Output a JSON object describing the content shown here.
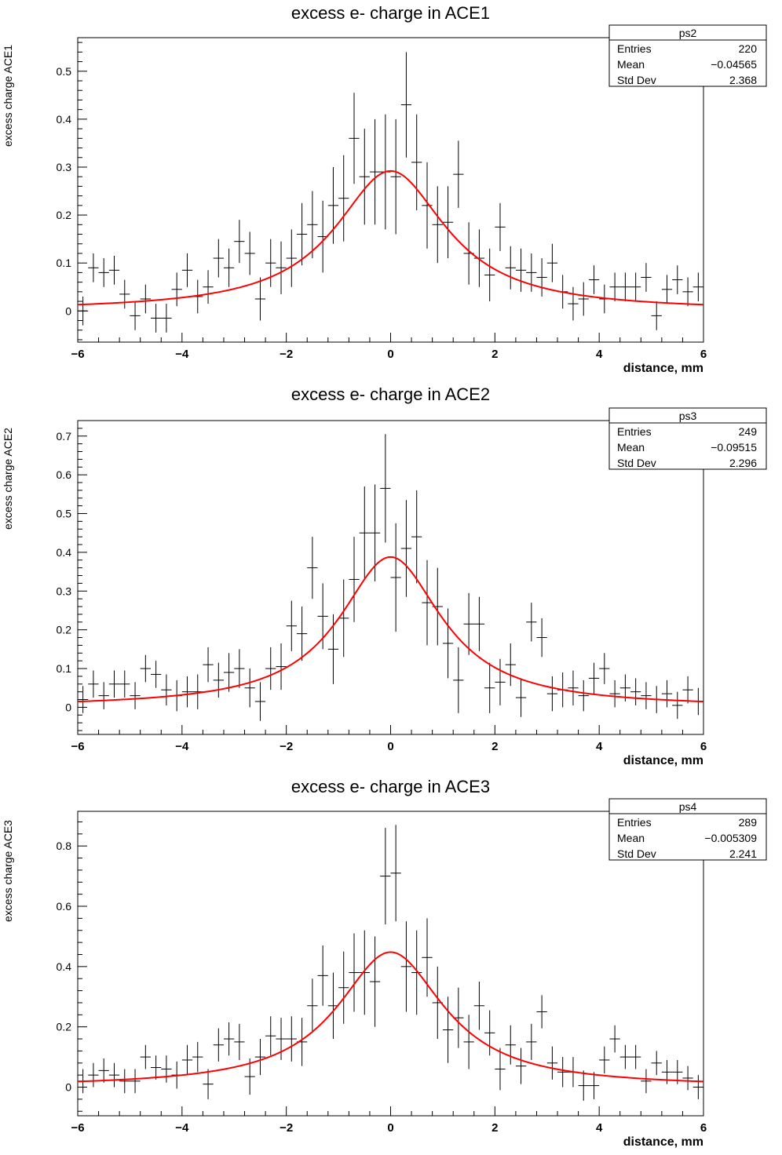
{
  "panels": [
    {
      "chart_data": {
        "type": "scatter",
        "title": "excess e- charge in ACE1",
        "xlabel": "distance, mm",
        "ylabel": "excess charge ACE1",
        "xlim": [
          -6,
          6
        ],
        "ylim": [
          -0.065,
          0.57
        ],
        "xticks": [
          -6,
          -4,
          -2,
          0,
          2,
          4,
          6
        ],
        "xtick_labels": [
          "−6",
          "−4",
          "−2",
          "0",
          "2",
          "4",
          "6"
        ],
        "yticks": [
          0,
          0.1,
          0.2,
          0.3,
          0.4,
          0.5
        ],
        "ytick_labels": [
          "0",
          "0.1",
          "0.2",
          "0.3",
          "0.4",
          "0.5"
        ],
        "grid": false,
        "stats_box": {
          "name": "ps2",
          "rows": [
            [
              "Entries",
              "220"
            ],
            [
              "Mean",
              "−0.04565"
            ],
            [
              "Std Dev",
              "2.368"
            ]
          ]
        },
        "fit": {
          "amp": 0.292,
          "gamma": 1.3,
          "color": "#ff0000"
        },
        "x": [
          -5.9,
          -5.7,
          -5.5,
          -5.3,
          -5.1,
          -4.9,
          -4.7,
          -4.5,
          -4.3,
          -4.1,
          -3.9,
          -3.7,
          -3.5,
          -3.3,
          -3.1,
          -2.9,
          -2.7,
          -2.5,
          -2.3,
          -2.1,
          -1.9,
          -1.7,
          -1.5,
          -1.3,
          -1.1,
          -0.9,
          -0.7,
          -0.5,
          -0.3,
          -0.1,
          0.1,
          0.3,
          0.5,
          0.7,
          0.9,
          1.1,
          1.3,
          1.5,
          1.7,
          1.9,
          2.1,
          2.3,
          2.5,
          2.7,
          2.9,
          3.1,
          3.3,
          3.5,
          3.7,
          3.9,
          4.1,
          4.3,
          4.5,
          4.7,
          4.9,
          5.1,
          5.3,
          5.5,
          5.7,
          5.9
        ],
        "y": [
          0.0,
          0.09,
          0.08,
          0.085,
          0.035,
          -0.01,
          0.025,
          -0.015,
          -0.015,
          0.045,
          0.085,
          0.03,
          0.05,
          0.11,
          0.09,
          0.145,
          0.12,
          0.025,
          0.1,
          0.09,
          0.11,
          0.16,
          0.18,
          0.155,
          0.22,
          0.235,
          0.36,
          0.28,
          0.29,
          0.29,
          0.28,
          0.43,
          0.31,
          0.22,
          0.18,
          0.185,
          0.285,
          0.12,
          0.11,
          0.075,
          0.175,
          0.09,
          0.085,
          0.08,
          0.07,
          0.1,
          0.04,
          0.015,
          0.025,
          0.065,
          0.025,
          0.05,
          0.05,
          0.05,
          0.07,
          -0.01,
          0.045,
          0.065,
          0.04,
          0.05
        ],
        "err": [
          0.03,
          0.03,
          0.03,
          0.03,
          0.03,
          0.03,
          0.03,
          0.03,
          0.03,
          0.035,
          0.035,
          0.035,
          0.035,
          0.04,
          0.04,
          0.045,
          0.045,
          0.045,
          0.05,
          0.055,
          0.06,
          0.065,
          0.07,
          0.075,
          0.08,
          0.09,
          0.095,
          0.1,
          0.11,
          0.12,
          0.12,
          0.11,
          0.1,
          0.09,
          0.08,
          0.075,
          0.07,
          0.065,
          0.06,
          0.055,
          0.05,
          0.045,
          0.045,
          0.04,
          0.04,
          0.04,
          0.035,
          0.035,
          0.035,
          0.03,
          0.03,
          0.03,
          0.03,
          0.03,
          0.03,
          0.03,
          0.03,
          0.03,
          0.03,
          0.03
        ]
      }
    },
    {
      "chart_data": {
        "type": "scatter",
        "title": "excess e- charge in ACE2",
        "xlabel": "distance, mm",
        "ylabel": "excess charge ACE2",
        "xlim": [
          -6,
          6
        ],
        "ylim": [
          -0.07,
          0.74
        ],
        "xticks": [
          -6,
          -4,
          -2,
          0,
          2,
          4,
          6
        ],
        "xtick_labels": [
          "−6",
          "−4",
          "−2",
          "0",
          "2",
          "4",
          "6"
        ],
        "yticks": [
          0,
          0.1,
          0.2,
          0.3,
          0.4,
          0.5,
          0.6,
          0.7
        ],
        "ytick_labels": [
          "0",
          "0.1",
          "0.2",
          "0.3",
          "0.4",
          "0.5",
          "0.6",
          "0.7"
        ],
        "grid": false,
        "stats_box": {
          "name": "ps3",
          "rows": [
            [
              "Entries",
              "249"
            ],
            [
              "Mean",
              "−0.09515"
            ],
            [
              "Std Dev",
              "2.296"
            ]
          ]
        },
        "fit": {
          "amp": 0.388,
          "gamma": 1.2,
          "color": "#ff0000"
        },
        "x": [
          -5.9,
          -5.7,
          -5.5,
          -5.3,
          -5.1,
          -4.9,
          -4.7,
          -4.5,
          -4.3,
          -4.1,
          -3.9,
          -3.7,
          -3.5,
          -3.3,
          -3.1,
          -2.9,
          -2.7,
          -2.5,
          -2.3,
          -2.1,
          -1.9,
          -1.7,
          -1.5,
          -1.3,
          -1.1,
          -0.9,
          -0.7,
          -0.5,
          -0.3,
          -0.1,
          0.1,
          0.3,
          0.5,
          0.7,
          0.9,
          1.1,
          1.3,
          1.5,
          1.7,
          1.9,
          2.1,
          2.3,
          2.5,
          2.7,
          2.9,
          3.1,
          3.3,
          3.5,
          3.7,
          3.9,
          4.1,
          4.3,
          4.5,
          4.7,
          4.9,
          5.1,
          5.3,
          5.5,
          5.7,
          5.9
        ],
        "y": [
          0.02,
          0.06,
          0.03,
          0.06,
          0.06,
          0.03,
          0.1,
          0.085,
          0.045,
          0.03,
          0.04,
          0.04,
          0.11,
          0.07,
          0.09,
          0.1,
          0.05,
          0.015,
          0.1,
          0.105,
          0.21,
          0.19,
          0.36,
          0.235,
          0.15,
          0.23,
          0.33,
          0.45,
          0.45,
          0.565,
          0.335,
          0.41,
          0.44,
          0.27,
          0.26,
          0.165,
          0.07,
          0.215,
          0.215,
          0.05,
          0.065,
          0.11,
          0.025,
          0.22,
          0.18,
          0.035,
          0.045,
          0.05,
          0.03,
          0.075,
          0.1,
          0.035,
          0.05,
          0.04,
          0.03,
          0.02,
          0.035,
          0.005,
          0.045,
          0.015
        ],
        "err": [
          0.035,
          0.035,
          0.035,
          0.035,
          0.035,
          0.035,
          0.035,
          0.035,
          0.04,
          0.04,
          0.04,
          0.045,
          0.045,
          0.045,
          0.05,
          0.05,
          0.05,
          0.05,
          0.055,
          0.06,
          0.065,
          0.07,
          0.08,
          0.085,
          0.09,
          0.1,
          0.11,
          0.12,
          0.125,
          0.14,
          0.14,
          0.125,
          0.12,
          0.11,
          0.1,
          0.09,
          0.085,
          0.08,
          0.07,
          0.065,
          0.06,
          0.055,
          0.05,
          0.05,
          0.05,
          0.045,
          0.045,
          0.045,
          0.04,
          0.04,
          0.04,
          0.035,
          0.035,
          0.035,
          0.035,
          0.035,
          0.035,
          0.035,
          0.035,
          0.035
        ]
      }
    },
    {
      "chart_data": {
        "type": "scatter",
        "title": "excess e- charge in ACE3",
        "xlabel": "distance, mm",
        "ylabel": "excess charge  ACE3",
        "xlim": [
          -6,
          6
        ],
        "ylim": [
          -0.095,
          0.915
        ],
        "xticks": [
          -6,
          -4,
          -2,
          0,
          2,
          4,
          6
        ],
        "xtick_labels": [
          "−6",
          "−4",
          "−2",
          "0",
          "2",
          "4",
          "6"
        ],
        "yticks": [
          0,
          0.2,
          0.4,
          0.6,
          0.8
        ],
        "ytick_labels": [
          "0",
          "0.2",
          "0.4",
          "0.6",
          "0.8"
        ],
        "grid": false,
        "stats_box": {
          "name": "ps4",
          "rows": [
            [
              "Entries",
              "289"
            ],
            [
              "Mean",
              "−0.005309"
            ],
            [
              "Std Dev",
              "2.241"
            ]
          ]
        },
        "fit": {
          "amp": 0.448,
          "gamma": 1.25,
          "color": "#ff0000"
        },
        "x": [
          -5.9,
          -5.7,
          -5.5,
          -5.3,
          -5.1,
          -4.9,
          -4.7,
          -4.5,
          -4.3,
          -4.1,
          -3.9,
          -3.7,
          -3.5,
          -3.3,
          -3.1,
          -2.9,
          -2.7,
          -2.5,
          -2.3,
          -2.1,
          -1.9,
          -1.7,
          -1.5,
          -1.3,
          -1.1,
          -0.9,
          -0.7,
          -0.5,
          -0.3,
          -0.1,
          0.1,
          0.3,
          0.5,
          0.7,
          0.9,
          1.1,
          1.3,
          1.5,
          1.7,
          1.9,
          2.1,
          2.3,
          2.5,
          2.7,
          2.9,
          3.1,
          3.3,
          3.5,
          3.7,
          3.9,
          4.1,
          4.3,
          4.5,
          4.7,
          4.9,
          5.1,
          5.3,
          5.5,
          5.7,
          5.9
        ],
        "y": [
          0.02,
          0.04,
          0.055,
          0.04,
          0.02,
          0.02,
          0.1,
          0.065,
          0.06,
          0.04,
          0.09,
          0.1,
          0.01,
          0.14,
          0.16,
          0.15,
          0.035,
          0.1,
          0.17,
          0.16,
          0.16,
          0.15,
          0.27,
          0.37,
          0.27,
          0.33,
          0.38,
          0.38,
          0.35,
          0.7,
          0.71,
          0.4,
          0.38,
          0.43,
          0.28,
          0.19,
          0.23,
          0.15,
          0.27,
          0.18,
          0.06,
          0.14,
          0.07,
          0.15,
          0.25,
          0.08,
          0.05,
          0.05,
          0.005,
          0.005,
          0.09,
          0.16,
          0.1,
          0.1,
          0.02,
          0.08,
          0.05,
          0.05,
          0.03,
          0.0
        ],
        "err": [
          0.04,
          0.04,
          0.04,
          0.04,
          0.04,
          0.04,
          0.04,
          0.04,
          0.045,
          0.045,
          0.05,
          0.05,
          0.05,
          0.055,
          0.055,
          0.06,
          0.06,
          0.06,
          0.065,
          0.07,
          0.075,
          0.08,
          0.09,
          0.1,
          0.11,
          0.12,
          0.13,
          0.14,
          0.15,
          0.16,
          0.16,
          0.15,
          0.14,
          0.13,
          0.12,
          0.11,
          0.1,
          0.09,
          0.08,
          0.075,
          0.07,
          0.065,
          0.06,
          0.06,
          0.055,
          0.055,
          0.05,
          0.05,
          0.05,
          0.045,
          0.045,
          0.045,
          0.04,
          0.04,
          0.04,
          0.04,
          0.04,
          0.04,
          0.04,
          0.04
        ]
      }
    }
  ]
}
